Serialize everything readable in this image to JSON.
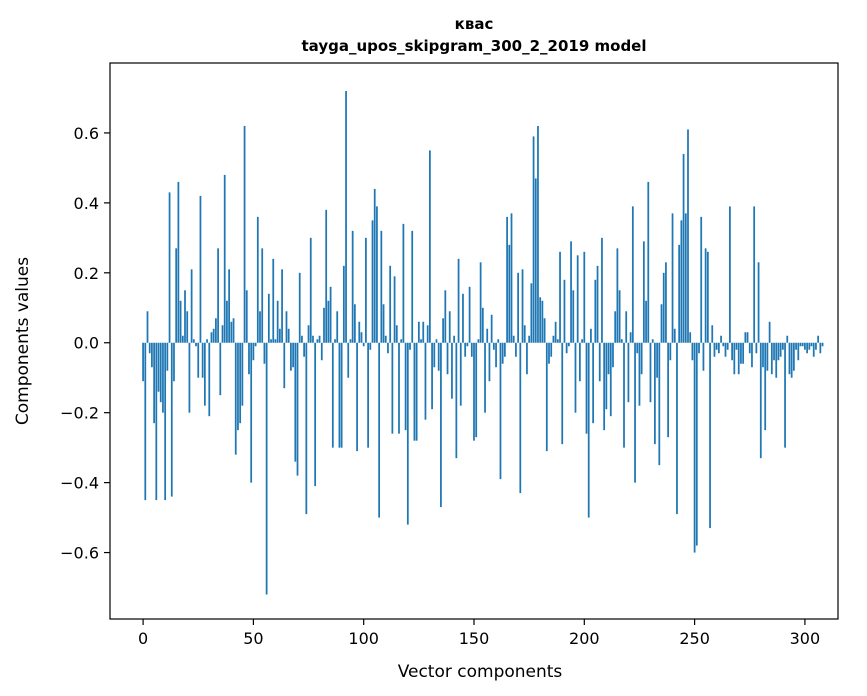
{
  "chart_data": {
    "type": "bar",
    "title": "квас",
    "subtitle": "tayga_upos_skipgram_300_2_2019 model",
    "xlabel": "Vector components",
    "ylabel": "Components values",
    "xlim": [
      -15,
      315
    ],
    "ylim": [
      -0.79,
      0.8
    ],
    "x_ticks": [
      0,
      50,
      100,
      150,
      200,
      250,
      300
    ],
    "x_tick_labels": [
      "0",
      "50",
      "100",
      "150",
      "200",
      "250",
      "300"
    ],
    "y_ticks": [
      -0.6,
      -0.4,
      -0.2,
      0.0,
      0.2,
      0.4,
      0.6
    ],
    "y_tick_labels": [
      "−0.6",
      "−0.4",
      "−0.2",
      "0.0",
      "0.2",
      "0.4",
      "0.6"
    ],
    "bar_color": "#1f77b4",
    "grid": false,
    "values": [
      -0.11,
      -0.45,
      0.09,
      -0.03,
      -0.07,
      -0.23,
      -0.45,
      -0.14,
      -0.17,
      -0.2,
      -0.45,
      -0.08,
      0.43,
      -0.44,
      -0.11,
      0.27,
      0.46,
      0.12,
      0.02,
      0.15,
      0.09,
      -0.2,
      0.21,
      0.01,
      -0.01,
      -0.1,
      0.42,
      -0.1,
      -0.18,
      0.01,
      -0.21,
      0.03,
      0.04,
      0.07,
      0.27,
      -0.15,
      0.05,
      0.48,
      0.12,
      0.21,
      0.06,
      0.07,
      -0.32,
      -0.25,
      -0.23,
      -0.18,
      0.62,
      0.15,
      -0.09,
      -0.4,
      -0.05,
      -0.01,
      0.36,
      0.09,
      0.27,
      -0.06,
      -0.72,
      0.14,
      0.01,
      0.24,
      0.01,
      0.12,
      0.04,
      0.21,
      -0.13,
      0.09,
      0.04,
      -0.08,
      -0.07,
      -0.34,
      -0.38,
      0.2,
      0.02,
      -0.04,
      -0.49,
      0.05,
      0.3,
      0.02,
      -0.41,
      0.01,
      0.02,
      -0.05,
      0.1,
      0.38,
      0.12,
      0.16,
      -0.3,
      0.01,
      0.09,
      -0.3,
      -0.3,
      0.22,
      0.72,
      -0.1,
      0.01,
      0.32,
      0.11,
      -0.31,
      0.06,
      0.03,
      -0.01,
      0.3,
      -0.3,
      -0.02,
      0.35,
      0.44,
      0.39,
      -0.5,
      0.32,
      0.11,
      0.02,
      -0.03,
      0.22,
      -0.26,
      0.19,
      0.05,
      -0.26,
      0.01,
      0.34,
      -0.25,
      -0.52,
      -0.02,
      0.32,
      -0.28,
      -0.28,
      0.06,
      0.01,
      0.06,
      -0.22,
      0.05,
      0.55,
      -0.19,
      -0.07,
      0.01,
      -0.08,
      -0.47,
      0.07,
      0.15,
      -0.09,
      0.09,
      -0.16,
      0.02,
      -0.33,
      0.24,
      -0.18,
      0.14,
      -0.04,
      -0.01,
      0.16,
      -0.04,
      -0.28,
      -0.27,
      0.01,
      0.23,
      0.1,
      -0.2,
      0.04,
      -0.11,
      0.08,
      -0.02,
      -0.07,
      0.01,
      -0.39,
      -0.06,
      -0.04,
      0.36,
      0.28,
      0.37,
      0.02,
      -0.04,
      0.2,
      -0.43,
      0.21,
      0.05,
      -0.09,
      0.02,
      0.17,
      0.59,
      0.47,
      0.62,
      0.13,
      0.12,
      0.07,
      -0.31,
      -0.06,
      -0.04,
      0.02,
      0.06,
      0.01,
      0.26,
      -0.29,
      0.18,
      -0.03,
      -0.01,
      0.29,
      0.15,
      -0.2,
      0.25,
      -0.11,
      0.01,
      0.26,
      -0.26,
      -0.5,
      0.04,
      -0.23,
      0.18,
      0.22,
      -0.11,
      0.3,
      -0.25,
      -0.19,
      -0.09,
      -0.21,
      -0.07,
      0.09,
      0.27,
      0.15,
      0.01,
      -0.3,
      0.09,
      -0.17,
      0.03,
      0.39,
      -0.4,
      -0.03,
      -0.18,
      -0.09,
      0.29,
      0.12,
      0.46,
      -0.17,
      0.01,
      -0.29,
      -0.1,
      -0.35,
      0.11,
      0.2,
      0.23,
      -0.27,
      -0.05,
      0.37,
      0.04,
      -0.49,
      0.28,
      0.35,
      0.54,
      0.37,
      0.61,
      0.03,
      -0.05,
      -0.6,
      -0.58,
      -0.03,
      0.36,
      -0.08,
      0.27,
      0.26,
      -0.53,
      0.05,
      -0.04,
      -0.02,
      -0.03,
      0.02,
      -0.01,
      -0.04,
      -0.02,
      0.39,
      -0.05,
      -0.09,
      -0.02,
      -0.09,
      -0.06,
      -0.06,
      0.03,
      0.03,
      -0.03,
      -0.07,
      0.39,
      -0.03,
      0.23,
      -0.33,
      -0.07,
      -0.25,
      -0.08,
      0.06,
      -0.09,
      -0.05,
      -0.1,
      -0.05,
      -0.04,
      -0.02,
      -0.3,
      0.02,
      -0.09,
      -0.1,
      -0.08,
      -0.02,
      -0.05,
      -0.01,
      -0.01,
      -0.02,
      -0.03,
      -0.02,
      -0.01,
      -0.04,
      -0.02,
      0.02,
      -0.03,
      -0.01
    ]
  }
}
